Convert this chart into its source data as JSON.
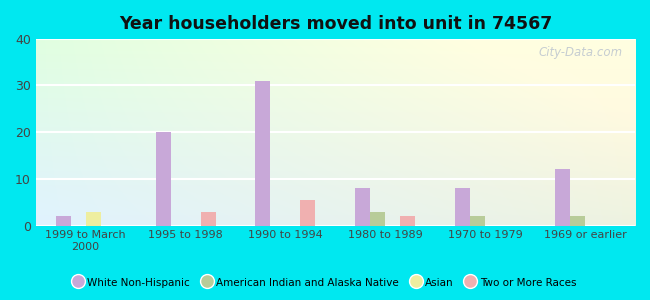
{
  "title": "Year householders moved into unit in 74567",
  "categories": [
    "1999 to March\n2000",
    "1995 to 1998",
    "1990 to 1994",
    "1980 to 1989",
    "1970 to 1979",
    "1969 or earlier"
  ],
  "series": {
    "White Non-Hispanic": [
      2,
      20,
      31,
      8,
      8,
      12
    ],
    "American Indian and Alaska Native": [
      0,
      0,
      0,
      3,
      2,
      2
    ],
    "Asian": [
      3,
      0,
      0,
      0,
      0,
      0
    ],
    "Two or More Races": [
      0,
      3,
      5.5,
      2,
      0,
      0
    ]
  },
  "colors": {
    "White Non-Hispanic": "#c8a8d8",
    "American Indian and Alaska Native": "#b8cc99",
    "Asian": "#eeeea0",
    "Two or More Races": "#f0b0b0"
  },
  "ylim": [
    0,
    40
  ],
  "yticks": [
    0,
    10,
    20,
    30,
    40
  ],
  "bg_outer": "#00e8f0",
  "watermark": "City-Data.com",
  "bar_width": 0.15
}
